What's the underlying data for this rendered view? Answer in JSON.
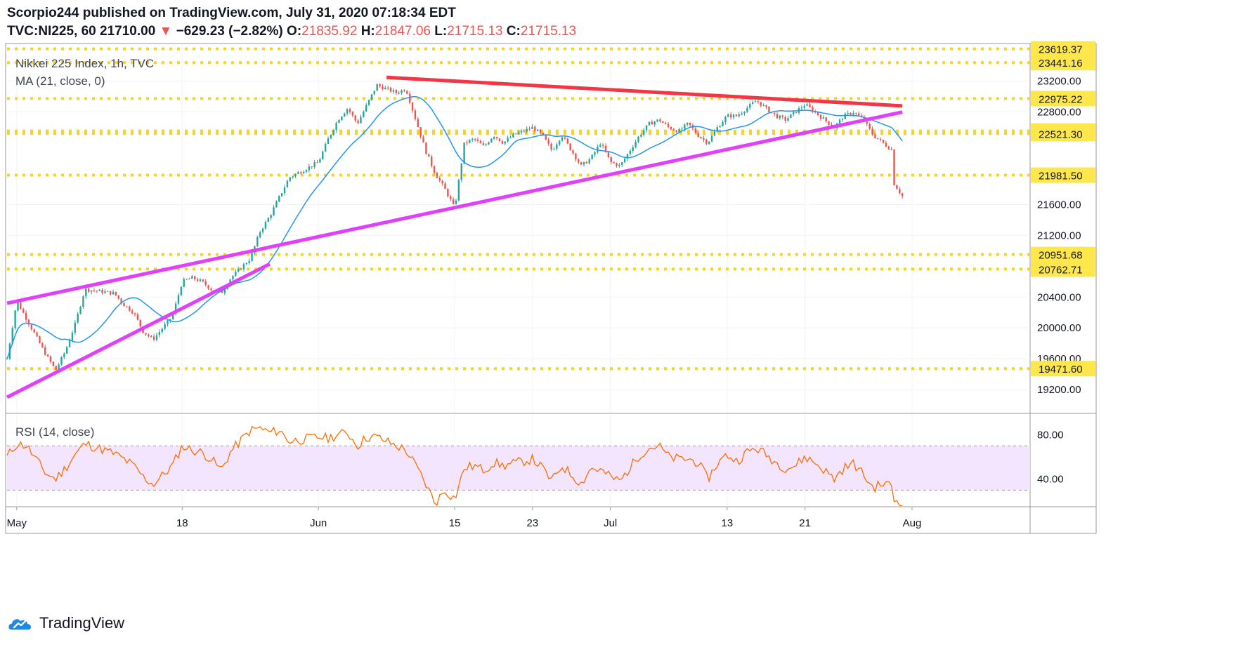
{
  "header": {
    "publisher_line": "Scorpio244 published on TradingView.com, July 31, 2020 07:18:34 EDT",
    "symbol": "TVC:NI225, 60",
    "last": "21710.00",
    "change_arrow": "▼",
    "change": "−629.23 (−2.82%)",
    "o_label": "O:",
    "o_value": "21835.92",
    "h_label": "H:",
    "h_value": "21847.06",
    "l_label": "L:",
    "l_value": "21715.13",
    "c_label": "C:",
    "c_value": "21715.13"
  },
  "footer": {
    "brand": "TradingView",
    "logo_icon": "tradingview-logo-icon"
  },
  "colors": {
    "up": "#26a69a",
    "down": "#ef5350",
    "ma": "#2196f3",
    "resistance": "#f23645",
    "trendline": "#e040fb",
    "level": "#f5d327",
    "rsi": "#ff6d00",
    "rsi_band": "#f3e5fd",
    "label_bg": "#fde74c"
  },
  "chart_data": [
    {
      "type": "candlestick",
      "title": "Nikkei 225 Index, 1h, TVC",
      "indicator_label": "MA (21, close, 0)",
      "ylim": [
        18900,
        23680
      ],
      "y_ticks": [
        "19200.00",
        "19600.00",
        "20000.00",
        "20400.00",
        "21200.00",
        "21600.00",
        "22800.00",
        "23200.00"
      ],
      "levels": [
        "23619.37",
        "23441.16",
        "22975.22",
        "22554.45",
        "22521.30",
        "21981.50",
        "20951.68",
        "20762.71",
        "19471.60"
      ],
      "x_tick_labels": [
        "May",
        "18",
        "Jun",
        "15",
        "23",
        "Jul",
        "13",
        "21",
        "Aug"
      ],
      "x_tick_dates": [
        "2020-05-01",
        "2020-05-18",
        "2020-06-01",
        "2020-06-15",
        "2020-06-23",
        "2020-07-01",
        "2020-07-13",
        "2020-07-21",
        "2020-08-01"
      ],
      "price_path": [
        [
          "2020-04-30",
          19600
        ],
        [
          "2020-05-01",
          20350
        ],
        [
          "2020-05-04",
          19650
        ],
        [
          "2020-05-05",
          19450
        ],
        [
          "2020-05-06",
          19700
        ],
        [
          "2020-05-07",
          20050
        ],
        [
          "2020-05-08",
          20500
        ],
        [
          "2020-05-11",
          20450
        ],
        [
          "2020-05-12",
          20300
        ],
        [
          "2020-05-13",
          20200
        ],
        [
          "2020-05-14",
          19950
        ],
        [
          "2020-05-15",
          19850
        ],
        [
          "2020-05-17",
          20150
        ],
        [
          "2020-05-18",
          20600
        ],
        [
          "2020-05-19",
          20650
        ],
        [
          "2020-05-20",
          20600
        ],
        [
          "2020-05-21",
          20500
        ],
        [
          "2020-05-22",
          20450
        ],
        [
          "2020-05-23",
          20650
        ],
        [
          "2020-05-25",
          20900
        ],
        [
          "2020-05-26",
          21250
        ],
        [
          "2020-05-27",
          21450
        ],
        [
          "2020-05-28",
          21700
        ],
        [
          "2020-05-29",
          21950
        ],
        [
          "2020-06-01",
          22150
        ],
        [
          "2020-06-02",
          22450
        ],
        [
          "2020-06-03",
          22700
        ],
        [
          "2020-06-04",
          22850
        ],
        [
          "2020-06-05",
          22650
        ],
        [
          "2020-06-06",
          22900
        ],
        [
          "2020-06-07",
          23150
        ],
        [
          "2020-06-08",
          23100
        ],
        [
          "2020-06-09",
          23050
        ],
        [
          "2020-06-10",
          23100
        ],
        [
          "2020-06-11",
          22700
        ],
        [
          "2020-06-12",
          22300
        ],
        [
          "2020-06-13",
          22000
        ],
        [
          "2020-06-14",
          21800
        ],
        [
          "2020-06-15",
          21550
        ],
        [
          "2020-06-16",
          22400
        ],
        [
          "2020-06-17",
          22450
        ],
        [
          "2020-06-18",
          22350
        ],
        [
          "2020-06-19",
          22500
        ],
        [
          "2020-06-20",
          22400
        ],
        [
          "2020-06-21",
          22500
        ],
        [
          "2020-06-22",
          22550
        ],
        [
          "2020-06-23",
          22600
        ],
        [
          "2020-06-24",
          22500
        ],
        [
          "2020-06-25",
          22300
        ],
        [
          "2020-06-26",
          22500
        ],
        [
          "2020-06-27",
          22300
        ],
        [
          "2020-06-28",
          22100
        ],
        [
          "2020-06-29",
          22200
        ],
        [
          "2020-06-30",
          22400
        ],
        [
          "2020-07-01",
          22150
        ],
        [
          "2020-07-02",
          22100
        ],
        [
          "2020-07-03",
          22300
        ],
        [
          "2020-07-04",
          22500
        ],
        [
          "2020-07-05",
          22650
        ],
        [
          "2020-07-06",
          22700
        ],
        [
          "2020-07-07",
          22600
        ],
        [
          "2020-07-08",
          22550
        ],
        [
          "2020-07-09",
          22650
        ],
        [
          "2020-07-10",
          22500
        ],
        [
          "2020-07-11",
          22400
        ],
        [
          "2020-07-12",
          22600
        ],
        [
          "2020-07-13",
          22750
        ],
        [
          "2020-07-14",
          22750
        ],
        [
          "2020-07-15",
          22850
        ],
        [
          "2020-07-16",
          22950
        ],
        [
          "2020-07-17",
          22850
        ],
        [
          "2020-07-18",
          22750
        ],
        [
          "2020-07-19",
          22700
        ],
        [
          "2020-07-20",
          22800
        ],
        [
          "2020-07-21",
          22900
        ],
        [
          "2020-07-22",
          22800
        ],
        [
          "2020-07-23",
          22700
        ],
        [
          "2020-07-24",
          22600
        ],
        [
          "2020-07-25",
          22750
        ],
        [
          "2020-07-26",
          22800
        ],
        [
          "2020-07-27",
          22700
        ],
        [
          "2020-07-28",
          22500
        ],
        [
          "2020-07-29",
          22400
        ],
        [
          "2020-07-30",
          22300
        ],
        [
          "2020-07-30",
          21900
        ],
        [
          "2020-07-31",
          21710
        ]
      ],
      "resistance_line": [
        [
          "2020-06-08",
          23250
        ],
        [
          "2020-07-31",
          22880
        ]
      ],
      "upper_trendline": [
        [
          "2020-04-30",
          20320
        ],
        [
          "2020-07-31",
          22800
        ]
      ],
      "lower_trendline": [
        [
          "2020-04-30",
          19100
        ],
        [
          "2020-05-27",
          20830
        ]
      ]
    },
    {
      "type": "line",
      "title": "RSI (14, close)",
      "ylim": [
        15,
        98
      ],
      "y_ticks": [
        "80.00",
        "40.00"
      ],
      "band": [
        30,
        70
      ],
      "rsi_path": [
        [
          "2020-04-30",
          60
        ],
        [
          "2020-05-01",
          72
        ],
        [
          "2020-05-02",
          70
        ],
        [
          "2020-05-04",
          45
        ],
        [
          "2020-05-05",
          40
        ],
        [
          "2020-05-06",
          50
        ],
        [
          "2020-05-07",
          62
        ],
        [
          "2020-05-08",
          72
        ],
        [
          "2020-05-11",
          63
        ],
        [
          "2020-05-12",
          58
        ],
        [
          "2020-05-13",
          52
        ],
        [
          "2020-05-14",
          42
        ],
        [
          "2020-05-15",
          35
        ],
        [
          "2020-05-17",
          52
        ],
        [
          "2020-05-18",
          70
        ],
        [
          "2020-05-19",
          66
        ],
        [
          "2020-05-20",
          64
        ],
        [
          "2020-05-21",
          58
        ],
        [
          "2020-05-22",
          48
        ],
        [
          "2020-05-23",
          65
        ],
        [
          "2020-05-25",
          84
        ],
        [
          "2020-05-26",
          86
        ],
        [
          "2020-05-27",
          82
        ],
        [
          "2020-05-28",
          84
        ],
        [
          "2020-05-29",
          74
        ],
        [
          "2020-06-01",
          78
        ],
        [
          "2020-06-02",
          77
        ],
        [
          "2020-06-03",
          80
        ],
        [
          "2020-06-04",
          82
        ],
        [
          "2020-06-05",
          70
        ],
        [
          "2020-06-06",
          78
        ],
        [
          "2020-06-07",
          78
        ],
        [
          "2020-06-08",
          74
        ],
        [
          "2020-06-09",
          70
        ],
        [
          "2020-06-10",
          66
        ],
        [
          "2020-06-11",
          52
        ],
        [
          "2020-06-12",
          36
        ],
        [
          "2020-06-13",
          18
        ],
        [
          "2020-06-14",
          30
        ],
        [
          "2020-06-15",
          22
        ],
        [
          "2020-06-16",
          50
        ],
        [
          "2020-06-17",
          52
        ],
        [
          "2020-06-18",
          48
        ],
        [
          "2020-06-19",
          55
        ],
        [
          "2020-06-20",
          52
        ],
        [
          "2020-06-21",
          54
        ],
        [
          "2020-06-22",
          56
        ],
        [
          "2020-06-23",
          58
        ],
        [
          "2020-06-24",
          50
        ],
        [
          "2020-06-25",
          38
        ],
        [
          "2020-06-26",
          52
        ],
        [
          "2020-06-27",
          44
        ],
        [
          "2020-06-28",
          36
        ],
        [
          "2020-06-29",
          50
        ],
        [
          "2020-06-30",
          48
        ],
        [
          "2020-07-01",
          42
        ],
        [
          "2020-07-02",
          38
        ],
        [
          "2020-07-03",
          50
        ],
        [
          "2020-07-04",
          62
        ],
        [
          "2020-07-05",
          68
        ],
        [
          "2020-07-06",
          70
        ],
        [
          "2020-07-07",
          60
        ],
        [
          "2020-07-08",
          58
        ],
        [
          "2020-07-09",
          58
        ],
        [
          "2020-07-10",
          55
        ],
        [
          "2020-07-11",
          40
        ],
        [
          "2020-07-12",
          54
        ],
        [
          "2020-07-13",
          62
        ],
        [
          "2020-07-14",
          56
        ],
        [
          "2020-07-15",
          64
        ],
        [
          "2020-07-16",
          68
        ],
        [
          "2020-07-17",
          62
        ],
        [
          "2020-07-18",
          55
        ],
        [
          "2020-07-19",
          50
        ],
        [
          "2020-07-20",
          52
        ],
        [
          "2020-07-21",
          60
        ],
        [
          "2020-07-22",
          55
        ],
        [
          "2020-07-23",
          48
        ],
        [
          "2020-07-24",
          40
        ],
        [
          "2020-07-25",
          50
        ],
        [
          "2020-07-26",
          54
        ],
        [
          "2020-07-27",
          44
        ],
        [
          "2020-07-28",
          32
        ],
        [
          "2020-07-29",
          36
        ],
        [
          "2020-07-30",
          34
        ],
        [
          "2020-07-30",
          22
        ],
        [
          "2020-07-31",
          18
        ]
      ]
    }
  ]
}
